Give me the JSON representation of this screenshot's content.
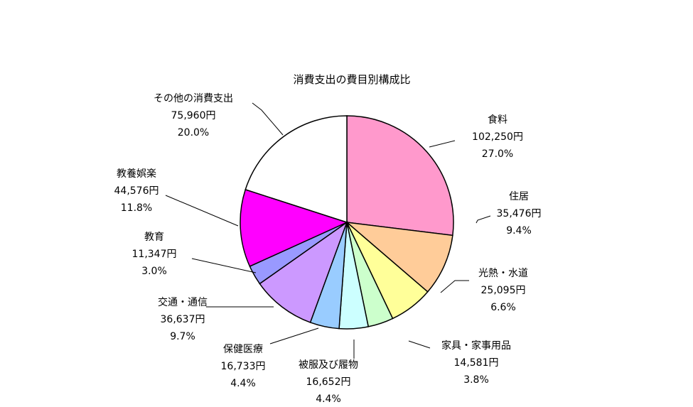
{
  "chart_data": {
    "type": "pie",
    "title": "消費支出の費目別構成比",
    "start_angle_deg": 0,
    "direction": "clockwise",
    "slices": [
      {
        "name": "食料",
        "value": 102250,
        "value_label": "102,250円",
        "percent_label": "27.0%",
        "color": "#FF99CC"
      },
      {
        "name": "住居",
        "value": 35476,
        "value_label": "35,476円",
        "percent_label": "9.4%",
        "color": "#FFCC99"
      },
      {
        "name": "光熱・水道",
        "value": 25095,
        "value_label": "25,095円",
        "percent_label": "6.6%",
        "color": "#FFFF99"
      },
      {
        "name": "家具・家事用品",
        "value": 14581,
        "value_label": "14,581円",
        "percent_label": "3.8%",
        "color": "#CCFFCC"
      },
      {
        "name": "被服及び履物",
        "value": 16652,
        "value_label": "16,652円",
        "percent_label": "4.4%",
        "color": "#CCFFFF"
      },
      {
        "name": "保健医療",
        "value": 16733,
        "value_label": "16,733円",
        "percent_label": "4.4%",
        "color": "#99CCFF"
      },
      {
        "name": "交通・通信",
        "value": 36637,
        "value_label": "36,637円",
        "percent_label": "9.7%",
        "color": "#CC99FF"
      },
      {
        "name": "教育",
        "value": 11347,
        "value_label": "11,347円",
        "percent_label": "3.0%",
        "color": "#9999FF"
      },
      {
        "name": "教養娯楽",
        "value": 44576,
        "value_label": "44,576円",
        "percent_label": "11.8%",
        "color": "#FF00FF"
      },
      {
        "name": "その他の消費支出",
        "value": 75960,
        "value_label": "75,960円",
        "percent_label": "20.0%",
        "color": "#FFFFFF"
      }
    ]
  }
}
